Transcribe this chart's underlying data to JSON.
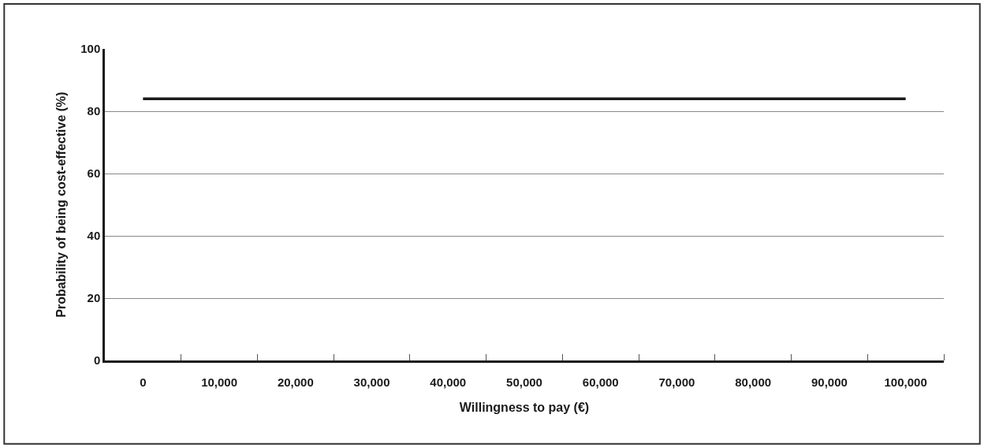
{
  "chart_data": {
    "type": "line",
    "xlabel": "Willingness to pay (€)",
    "ylabel": "Probability of being cost-effective (%)",
    "x": [
      0,
      100000
    ],
    "series": [
      {
        "color": "#1a1a1a",
        "values": [
          84,
          84
        ]
      }
    ],
    "xlim": [
      -5000,
      105000
    ],
    "xticks": [
      {
        "value": 0,
        "label": "0"
      },
      {
        "value": 10000,
        "label": "10,000"
      },
      {
        "value": 20000,
        "label": "20,000"
      },
      {
        "value": 30000,
        "label": "30,000"
      },
      {
        "value": 40000,
        "label": "40,000"
      },
      {
        "value": 50000,
        "label": "50,000"
      },
      {
        "value": 60000,
        "label": "60,000"
      },
      {
        "value": 70000,
        "label": "70,000"
      },
      {
        "value": 80000,
        "label": "80,000"
      },
      {
        "value": 90000,
        "label": "90,000"
      },
      {
        "value": 100000,
        "label": "100,000"
      },
      {
        "value": 5000,
        "label": null
      },
      {
        "value": 15000,
        "label": null
      },
      {
        "value": 25000,
        "label": null
      },
      {
        "value": 35000,
        "label": null
      },
      {
        "value": 45000,
        "label": null
      },
      {
        "value": 55000,
        "label": null
      },
      {
        "value": 65000,
        "label": null
      },
      {
        "value": 75000,
        "label": null
      },
      {
        "value": 85000,
        "label": null
      },
      {
        "value": 95000,
        "label": null
      },
      {
        "value": 105000,
        "label": null
      }
    ],
    "ylim": [
      0,
      100
    ],
    "yticks": [
      0,
      20,
      40,
      60,
      80,
      100
    ],
    "grid": "y",
    "marker": "none",
    "line_style": "solid"
  }
}
